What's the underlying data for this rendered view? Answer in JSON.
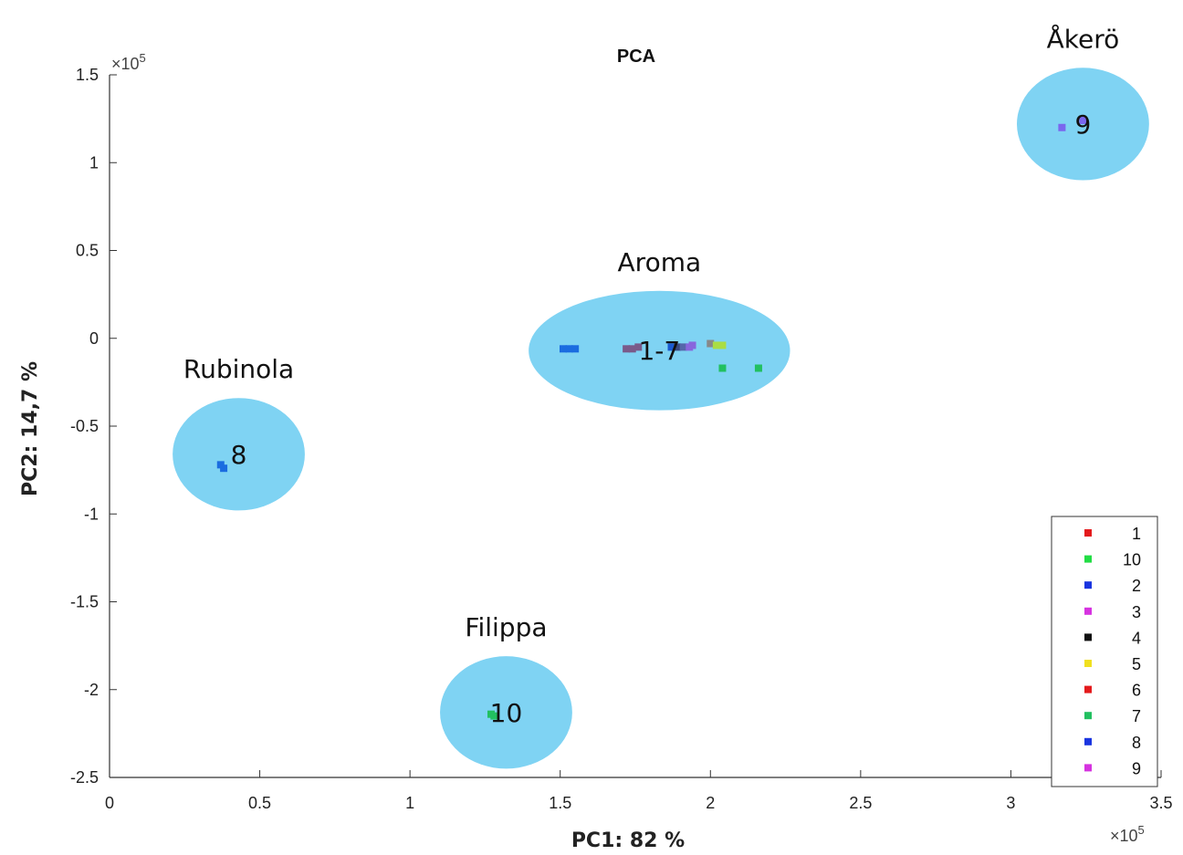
{
  "chart_data": {
    "type": "scatter",
    "title": "PCA",
    "xlabel": "PC1: 82 %",
    "ylabel": "PC2: 14,7 %",
    "x_multiplier": "×10",
    "x_multiplier_exp": "5",
    "y_multiplier": "×10",
    "y_multiplier_exp": "5",
    "xlim": [
      0,
      3.5
    ],
    "ylim": [
      -2.5,
      1.5
    ],
    "xticks": [
      "0",
      "0.5",
      "1",
      "1.5",
      "2",
      "2.5",
      "3",
      "3.5"
    ],
    "yticks": [
      "1.5",
      "1",
      "0.5",
      "0",
      "-0.5",
      "-1",
      "-1.5",
      "-2",
      "-2.5"
    ],
    "grid": false,
    "legend_position": "bottom-right",
    "legend": [
      {
        "name": "1",
        "color": "#e41a1c"
      },
      {
        "name": "10",
        "color": "#22dd44"
      },
      {
        "name": "2",
        "color": "#1a35e0"
      },
      {
        "name": "3",
        "color": "#d633e0"
      },
      {
        "name": "4",
        "color": "#111111"
      },
      {
        "name": "5",
        "color": "#f0e020"
      },
      {
        "name": "6",
        "color": "#e41a1c"
      },
      {
        "name": "7",
        "color": "#22c060"
      },
      {
        "name": "8",
        "color": "#1a35e0"
      },
      {
        "name": "9",
        "color": "#d633e0"
      }
    ],
    "points": [
      {
        "x": 1.51,
        "y": -0.06,
        "color": "#1a6ce0"
      },
      {
        "x": 1.53,
        "y": -0.06,
        "color": "#1a6ce0"
      },
      {
        "x": 1.55,
        "y": -0.06,
        "color": "#1a6ce0"
      },
      {
        "x": 1.72,
        "y": -0.06,
        "color": "#7a5a8a"
      },
      {
        "x": 1.74,
        "y": -0.06,
        "color": "#7a5a8a"
      },
      {
        "x": 1.76,
        "y": -0.05,
        "color": "#7a5a8a"
      },
      {
        "x": 1.87,
        "y": -0.05,
        "color": "#1a5ad0"
      },
      {
        "x": 1.89,
        "y": -0.05,
        "color": "#3a4a80"
      },
      {
        "x": 1.91,
        "y": -0.05,
        "color": "#5566aa"
      },
      {
        "x": 1.93,
        "y": -0.05,
        "color": "#8866dd"
      },
      {
        "x": 1.94,
        "y": -0.04,
        "color": "#8866dd"
      },
      {
        "x": 2.0,
        "y": -0.03,
        "color": "#888888"
      },
      {
        "x": 2.02,
        "y": -0.04,
        "color": "#aadd44"
      },
      {
        "x": 2.04,
        "y": -0.04,
        "color": "#aadd44"
      },
      {
        "x": 2.04,
        "y": -0.17,
        "color": "#22c060"
      },
      {
        "x": 2.16,
        "y": -0.17,
        "color": "#22c060"
      },
      {
        "x": 0.37,
        "y": -0.72,
        "color": "#1a6ce0"
      },
      {
        "x": 0.38,
        "y": -0.74,
        "color": "#1a6ce0"
      },
      {
        "x": 1.27,
        "y": -2.14,
        "color": "#22c060"
      },
      {
        "x": 1.28,
        "y": -2.15,
        "color": "#22c060"
      },
      {
        "x": 3.17,
        "y": 1.2,
        "color": "#7a66ee"
      },
      {
        "x": 3.24,
        "y": 1.24,
        "color": "#7a66ee"
      }
    ],
    "clusters": [
      {
        "label": "1-7",
        "name": "Aroma",
        "cx": 1.83,
        "cy": -0.07,
        "rx": 0.435,
        "ry": 0.34
      },
      {
        "label": "8",
        "name": "Rubinola",
        "cx": 0.43,
        "cy": -0.66,
        "rx": 0.22,
        "ry": 0.32
      },
      {
        "label": "10",
        "name": "Filippa",
        "cx": 1.32,
        "cy": -2.13,
        "rx": 0.22,
        "ry": 0.32
      },
      {
        "label": "9",
        "name": "Åkerö",
        "cx": 3.24,
        "cy": 1.22,
        "rx": 0.22,
        "ry": 0.32
      }
    ],
    "cluster_color": "#7fd3f3"
  }
}
